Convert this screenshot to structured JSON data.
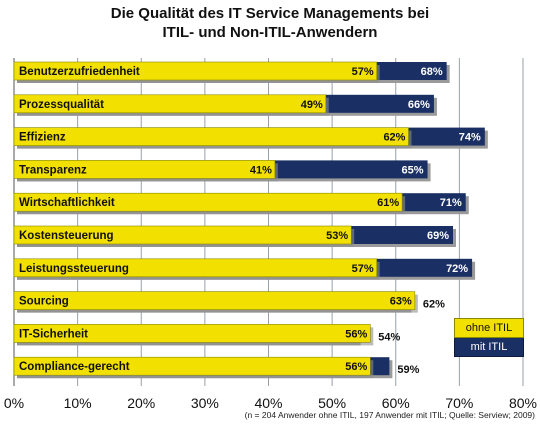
{
  "title_line1": "Die Qualität des IT Service Managements bei",
  "title_line2": "ITIL- und Non-ITIL-Anwendern",
  "footnote": "(n = 204 Anwender ohne ITIL, 197 Anwender mit ITIL; Quelle: Serview;  2009)",
  "colors": {
    "ohne": "#f2e000",
    "mit": "#1a2f63",
    "grid": "#9aa0a6"
  },
  "chart_data": {
    "type": "bar",
    "orientation": "horizontal",
    "categories": [
      "Benutzerzufriedenheit",
      "Prozessqualität",
      "Effizienz",
      "Transparenz",
      "Wirtschaftlichkeit",
      "Kostensteuerung",
      "Leistungssteuerung",
      "Sourcing",
      "IT-Sicherheit",
      "Compliance-gerecht"
    ],
    "series": [
      {
        "name": "ohne ITIL",
        "values": [
          57,
          49,
          62,
          41,
          61,
          53,
          57,
          63,
          56,
          56
        ]
      },
      {
        "name": "mit ITIL",
        "values": [
          68,
          66,
          74,
          65,
          71,
          69,
          72,
          62,
          54,
          59
        ]
      }
    ],
    "value_labels_ohne": [
      "57%",
      "49%",
      "62%",
      "41%",
      "61%",
      "53%",
      "57%",
      "63%",
      "56%",
      "56%"
    ],
    "value_labels_mit": [
      "68%",
      "66%",
      "74%",
      "65%",
      "71%",
      "69%",
      "72%",
      "62%",
      "54%",
      "59%"
    ],
    "xticks": [
      "0%",
      "10%",
      "20%",
      "30%",
      "40%",
      "50%",
      "60%",
      "70%",
      "80%"
    ],
    "xlim": [
      0,
      80
    ],
    "grid": true,
    "legend_position": "bottom-right"
  }
}
